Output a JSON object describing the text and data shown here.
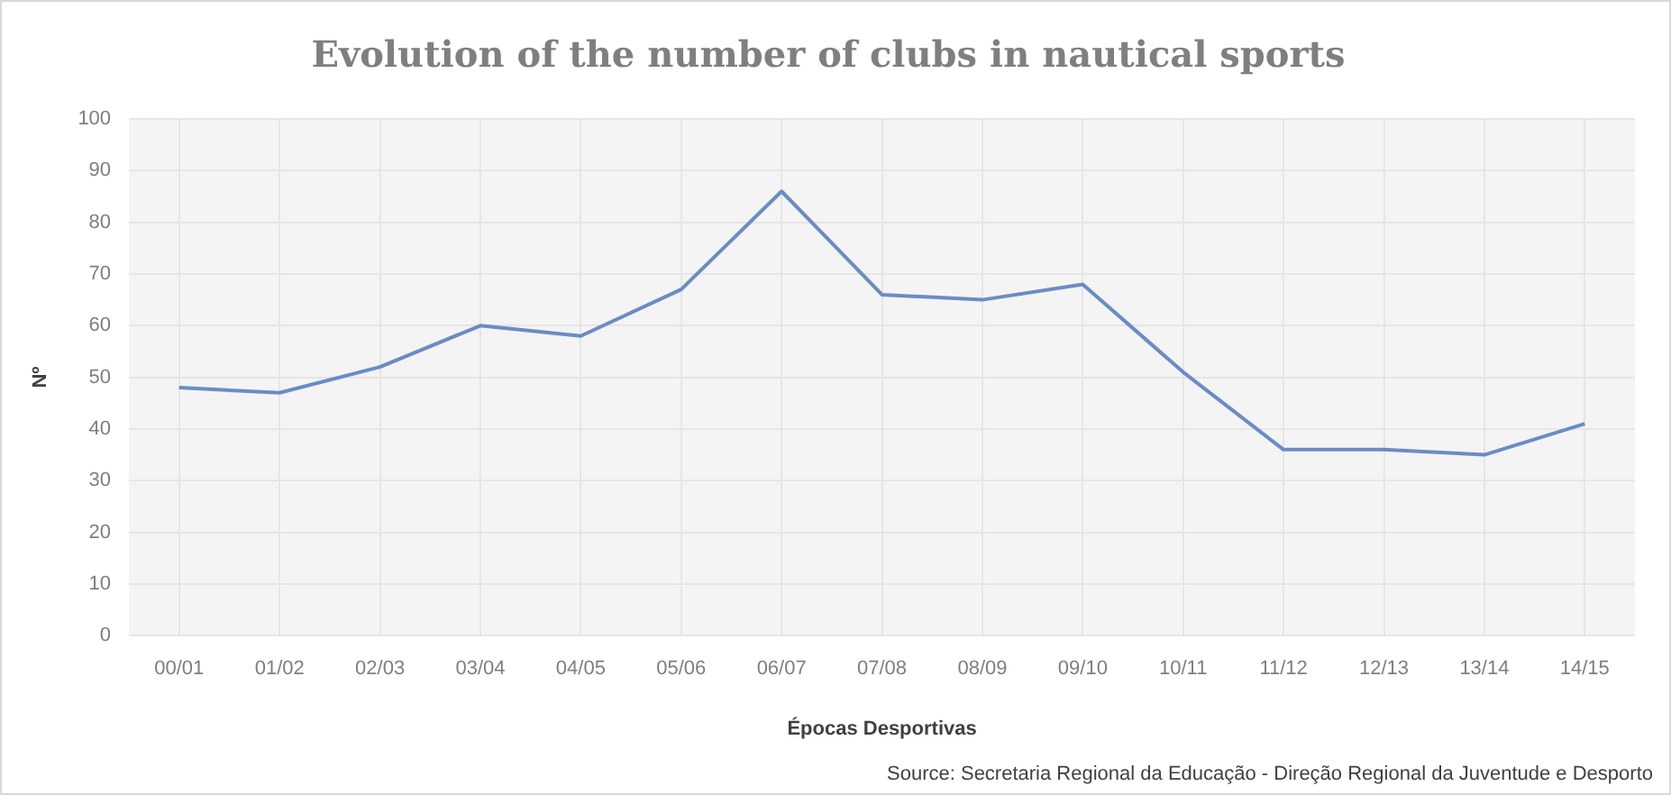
{
  "chart_data": {
    "type": "line",
    "title": "Evolution of the number of clubs in nautical sports",
    "xlabel": "Épocas Desportivas",
    "ylabel": "Nº",
    "categories": [
      "00/01",
      "01/02",
      "02/03",
      "03/04",
      "04/05",
      "05/06",
      "06/07",
      "07/08",
      "08/09",
      "09/10",
      "10/11",
      "11/12",
      "12/13",
      "13/14",
      "14/15"
    ],
    "series": [
      {
        "color": "#6a8cc4",
        "values": [
          48,
          47,
          52,
          60,
          58,
          67,
          86,
          66,
          65,
          68,
          51,
          36,
          36,
          35,
          41
        ]
      }
    ],
    "ylim": [
      0,
      100
    ],
    "yticks": [
      0,
      10,
      20,
      30,
      40,
      50,
      60,
      70,
      80,
      90,
      100
    ],
    "grid": true,
    "legend": false,
    "marker": "none",
    "line_style": "solid",
    "annotations": [
      "Source: Secretaria Regional da Educação - Direção Regional da Juventude e Desporto"
    ]
  }
}
